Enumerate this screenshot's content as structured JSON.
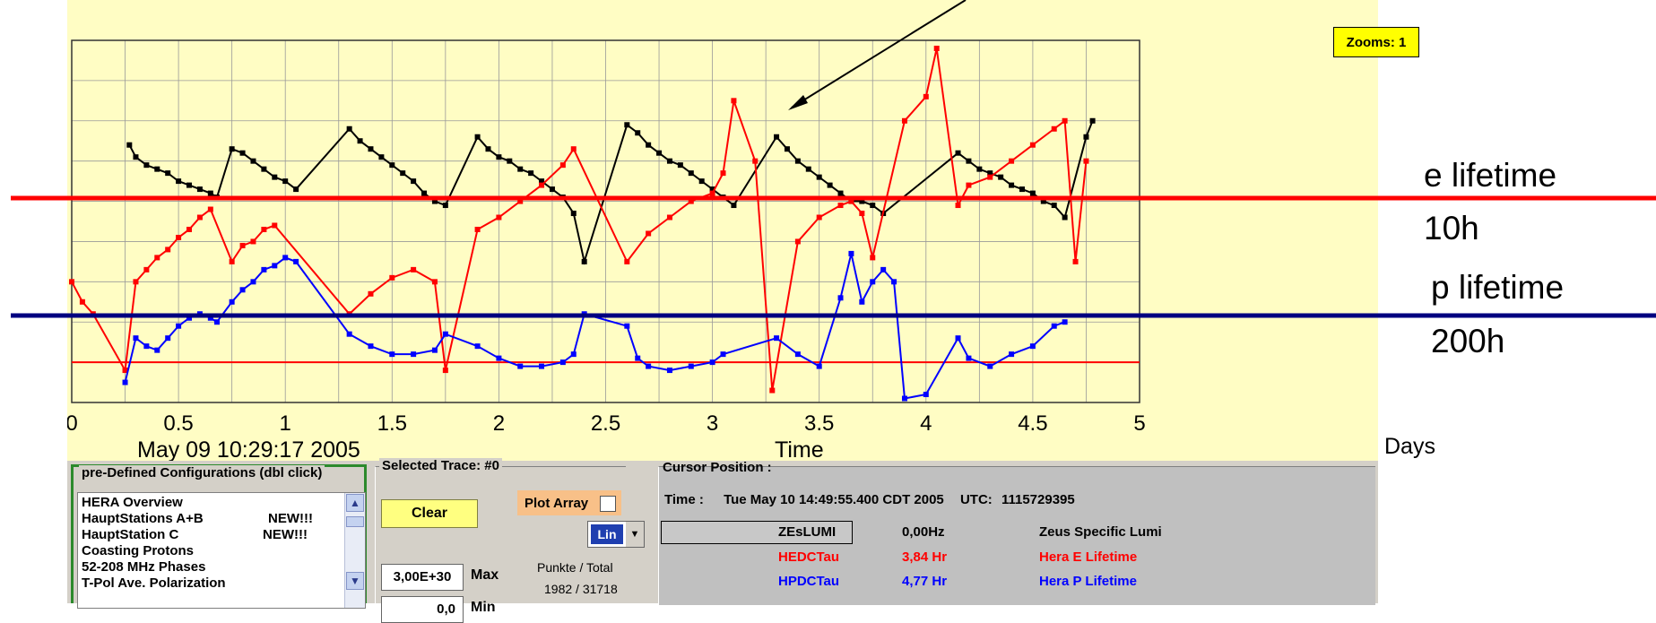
{
  "chart_data": {
    "type": "line",
    "xlabel": "Time",
    "x_unit_label": "Days",
    "start_label": "May 09 10:29:17 2005",
    "xlim": [
      0,
      5
    ],
    "x_ticks": [
      "0",
      "0.5",
      "1",
      "1.5",
      "2",
      "2.5",
      "3",
      "3.5",
      "4",
      "4.5",
      "5"
    ],
    "ylim": [
      0,
      9
    ],
    "grid": true,
    "zoom_label": "Zooms: 1",
    "series": [
      {
        "color": "#000000",
        "points": [
          [
            0.27,
            6.4
          ],
          [
            0.3,
            6.1
          ],
          [
            0.35,
            5.9
          ],
          [
            0.4,
            5.8
          ],
          [
            0.45,
            5.7
          ],
          [
            0.5,
            5.5
          ],
          [
            0.55,
            5.4
          ],
          [
            0.6,
            5.3
          ],
          [
            0.65,
            5.2
          ],
          [
            0.68,
            5.1
          ],
          [
            0.75,
            6.3
          ],
          [
            0.8,
            6.2
          ],
          [
            0.85,
            6.0
          ],
          [
            0.9,
            5.8
          ],
          [
            0.95,
            5.6
          ],
          [
            1.0,
            5.5
          ],
          [
            1.05,
            5.3
          ],
          [
            1.3,
            6.8
          ],
          [
            1.35,
            6.5
          ],
          [
            1.4,
            6.3
          ],
          [
            1.45,
            6.1
          ],
          [
            1.5,
            5.9
          ],
          [
            1.55,
            5.7
          ],
          [
            1.6,
            5.5
          ],
          [
            1.65,
            5.2
          ],
          [
            1.7,
            5.0
          ],
          [
            1.75,
            4.9
          ],
          [
            1.9,
            6.6
          ],
          [
            1.95,
            6.3
          ],
          [
            2.0,
            6.1
          ],
          [
            2.05,
            6.0
          ],
          [
            2.1,
            5.8
          ],
          [
            2.15,
            5.7
          ],
          [
            2.2,
            5.5
          ],
          [
            2.25,
            5.3
          ],
          [
            2.3,
            5.1
          ],
          [
            2.35,
            4.7
          ],
          [
            2.4,
            3.5
          ],
          [
            2.6,
            6.9
          ],
          [
            2.65,
            6.7
          ],
          [
            2.7,
            6.4
          ],
          [
            2.75,
            6.2
          ],
          [
            2.8,
            6.0
          ],
          [
            2.85,
            5.9
          ],
          [
            2.9,
            5.7
          ],
          [
            2.95,
            5.5
          ],
          [
            3.0,
            5.3
          ],
          [
            3.05,
            5.1
          ],
          [
            3.1,
            4.9
          ],
          [
            3.3,
            6.6
          ],
          [
            3.35,
            6.3
          ],
          [
            3.4,
            6.0
          ],
          [
            3.45,
            5.8
          ],
          [
            3.5,
            5.6
          ],
          [
            3.55,
            5.4
          ],
          [
            3.6,
            5.2
          ],
          [
            3.65,
            5.0
          ],
          [
            3.7,
            5.0
          ],
          [
            3.75,
            4.9
          ],
          [
            3.8,
            4.7
          ],
          [
            4.15,
            6.2
          ],
          [
            4.2,
            6.0
          ],
          [
            4.25,
            5.8
          ],
          [
            4.3,
            5.7
          ],
          [
            4.35,
            5.6
          ],
          [
            4.4,
            5.4
          ],
          [
            4.45,
            5.3
          ],
          [
            4.5,
            5.2
          ],
          [
            4.55,
            5.0
          ],
          [
            4.6,
            4.9
          ],
          [
            4.65,
            4.6
          ],
          [
            4.75,
            6.6
          ],
          [
            4.78,
            7.0
          ]
        ]
      },
      {
        "color": "#ff0000",
        "points": [
          [
            0.0,
            3.0
          ],
          [
            0.05,
            2.5
          ],
          [
            0.1,
            2.2
          ],
          [
            0.25,
            0.8
          ],
          [
            0.3,
            3.0
          ],
          [
            0.35,
            3.3
          ],
          [
            0.4,
            3.6
          ],
          [
            0.45,
            3.8
          ],
          [
            0.5,
            4.1
          ],
          [
            0.55,
            4.3
          ],
          [
            0.6,
            4.6
          ],
          [
            0.65,
            4.8
          ],
          [
            0.75,
            3.5
          ],
          [
            0.8,
            3.9
          ],
          [
            0.85,
            4.0
          ],
          [
            0.9,
            4.3
          ],
          [
            0.95,
            4.4
          ],
          [
            1.3,
            2.2
          ],
          [
            1.4,
            2.7
          ],
          [
            1.5,
            3.1
          ],
          [
            1.6,
            3.3
          ],
          [
            1.7,
            3.0
          ],
          [
            1.75,
            0.8
          ],
          [
            1.9,
            4.3
          ],
          [
            2.0,
            4.6
          ],
          [
            2.1,
            5.0
          ],
          [
            2.2,
            5.4
          ],
          [
            2.3,
            5.9
          ],
          [
            2.35,
            6.3
          ],
          [
            2.6,
            3.5
          ],
          [
            2.7,
            4.2
          ],
          [
            2.8,
            4.6
          ],
          [
            2.9,
            5.0
          ],
          [
            3.0,
            5.2
          ],
          [
            3.05,
            5.7
          ],
          [
            3.1,
            7.5
          ],
          [
            3.2,
            6.0
          ],
          [
            3.28,
            0.3
          ],
          [
            3.4,
            4.0
          ],
          [
            3.5,
            4.6
          ],
          [
            3.6,
            4.9
          ],
          [
            3.65,
            5.0
          ],
          [
            3.7,
            4.7
          ],
          [
            3.75,
            3.6
          ],
          [
            3.9,
            7.0
          ],
          [
            4.0,
            7.6
          ],
          [
            4.05,
            8.8
          ],
          [
            4.15,
            4.9
          ],
          [
            4.2,
            5.4
          ],
          [
            4.3,
            5.6
          ],
          [
            4.4,
            6.0
          ],
          [
            4.5,
            6.4
          ],
          [
            4.6,
            6.8
          ],
          [
            4.65,
            7.0
          ],
          [
            4.7,
            3.5
          ],
          [
            4.75,
            6.0
          ]
        ]
      },
      {
        "color": "#0000ff",
        "points": [
          [
            0.25,
            0.5
          ],
          [
            0.3,
            1.6
          ],
          [
            0.35,
            1.4
          ],
          [
            0.4,
            1.3
          ],
          [
            0.45,
            1.6
          ],
          [
            0.5,
            1.9
          ],
          [
            0.55,
            2.1
          ],
          [
            0.6,
            2.2
          ],
          [
            0.65,
            2.1
          ],
          [
            0.68,
            2.0
          ],
          [
            0.75,
            2.5
          ],
          [
            0.8,
            2.8
          ],
          [
            0.85,
            3.0
          ],
          [
            0.9,
            3.3
          ],
          [
            0.95,
            3.4
          ],
          [
            1.0,
            3.6
          ],
          [
            1.05,
            3.5
          ],
          [
            1.3,
            1.7
          ],
          [
            1.4,
            1.4
          ],
          [
            1.5,
            1.2
          ],
          [
            1.6,
            1.2
          ],
          [
            1.7,
            1.3
          ],
          [
            1.75,
            1.7
          ],
          [
            1.9,
            1.4
          ],
          [
            2.0,
            1.1
          ],
          [
            2.1,
            0.9
          ],
          [
            2.2,
            0.9
          ],
          [
            2.3,
            1.0
          ],
          [
            2.35,
            1.2
          ],
          [
            2.4,
            2.2
          ],
          [
            2.6,
            1.9
          ],
          [
            2.65,
            1.1
          ],
          [
            2.7,
            0.9
          ],
          [
            2.8,
            0.8
          ],
          [
            2.9,
            0.9
          ],
          [
            3.0,
            1.0
          ],
          [
            3.05,
            1.2
          ],
          [
            3.3,
            1.6
          ],
          [
            3.4,
            1.2
          ],
          [
            3.5,
            0.9
          ],
          [
            3.6,
            2.6
          ],
          [
            3.65,
            3.7
          ],
          [
            3.7,
            2.5
          ],
          [
            3.75,
            3.0
          ],
          [
            3.8,
            3.3
          ],
          [
            3.85,
            3.0
          ],
          [
            3.9,
            0.1
          ],
          [
            4.0,
            0.2
          ],
          [
            4.15,
            1.6
          ],
          [
            4.2,
            1.1
          ],
          [
            4.3,
            0.9
          ],
          [
            4.4,
            1.2
          ],
          [
            4.5,
            1.4
          ],
          [
            4.6,
            1.9
          ],
          [
            4.65,
            2.0
          ]
        ]
      }
    ],
    "hlines": [
      {
        "y": 1.0,
        "color": "#ff0000"
      }
    ],
    "annotations": {
      "e_lifetime": "e lifetime",
      "e_value": "10h",
      "p_lifetime": "p lifetime",
      "p_value": "200h"
    }
  },
  "config_panel": {
    "title": "pre-Defined Configurations (dbl click)",
    "items": [
      "HERA Overview",
      "HauptStations A+B",
      "HauptStation C",
      "Coasting Protons",
      "52-208 MHz Phases",
      "T-Pol Ave. Polarization"
    ],
    "new_badges": [
      "NEW!!!",
      "NEW!!!"
    ]
  },
  "trace_panel": {
    "title": "Selected Trace: #0",
    "clear_label": "Clear",
    "plot_array_label": "Plot Array",
    "scale_value": "Lin",
    "max_value": "3,00E+30",
    "max_label": "Max",
    "min_value": "0,0",
    "min_label": "Min",
    "punkte_label": "Punkte / Total",
    "punkte_value": "1982 / 31718"
  },
  "cursor_panel": {
    "title": "Cursor Position :",
    "time_label": "Time :",
    "time_value": "Tue May 10 14:49:55.400 CDT 2005",
    "utc_label": "UTC:",
    "utc_value": "1115729395",
    "rows": [
      {
        "name": "ZEsLUMI",
        "value": "0,00Hz",
        "desc": "Zeus Specific Lumi",
        "color": "#000000"
      },
      {
        "name": "HEDCTau",
        "value": "3,84 Hr",
        "desc": "Hera E Lifetime",
        "color": "#ff0000"
      },
      {
        "name": "HPDCTau",
        "value": "4,77 Hr",
        "desc": "Hera P Lifetime",
        "color": "#0000ff"
      }
    ]
  }
}
